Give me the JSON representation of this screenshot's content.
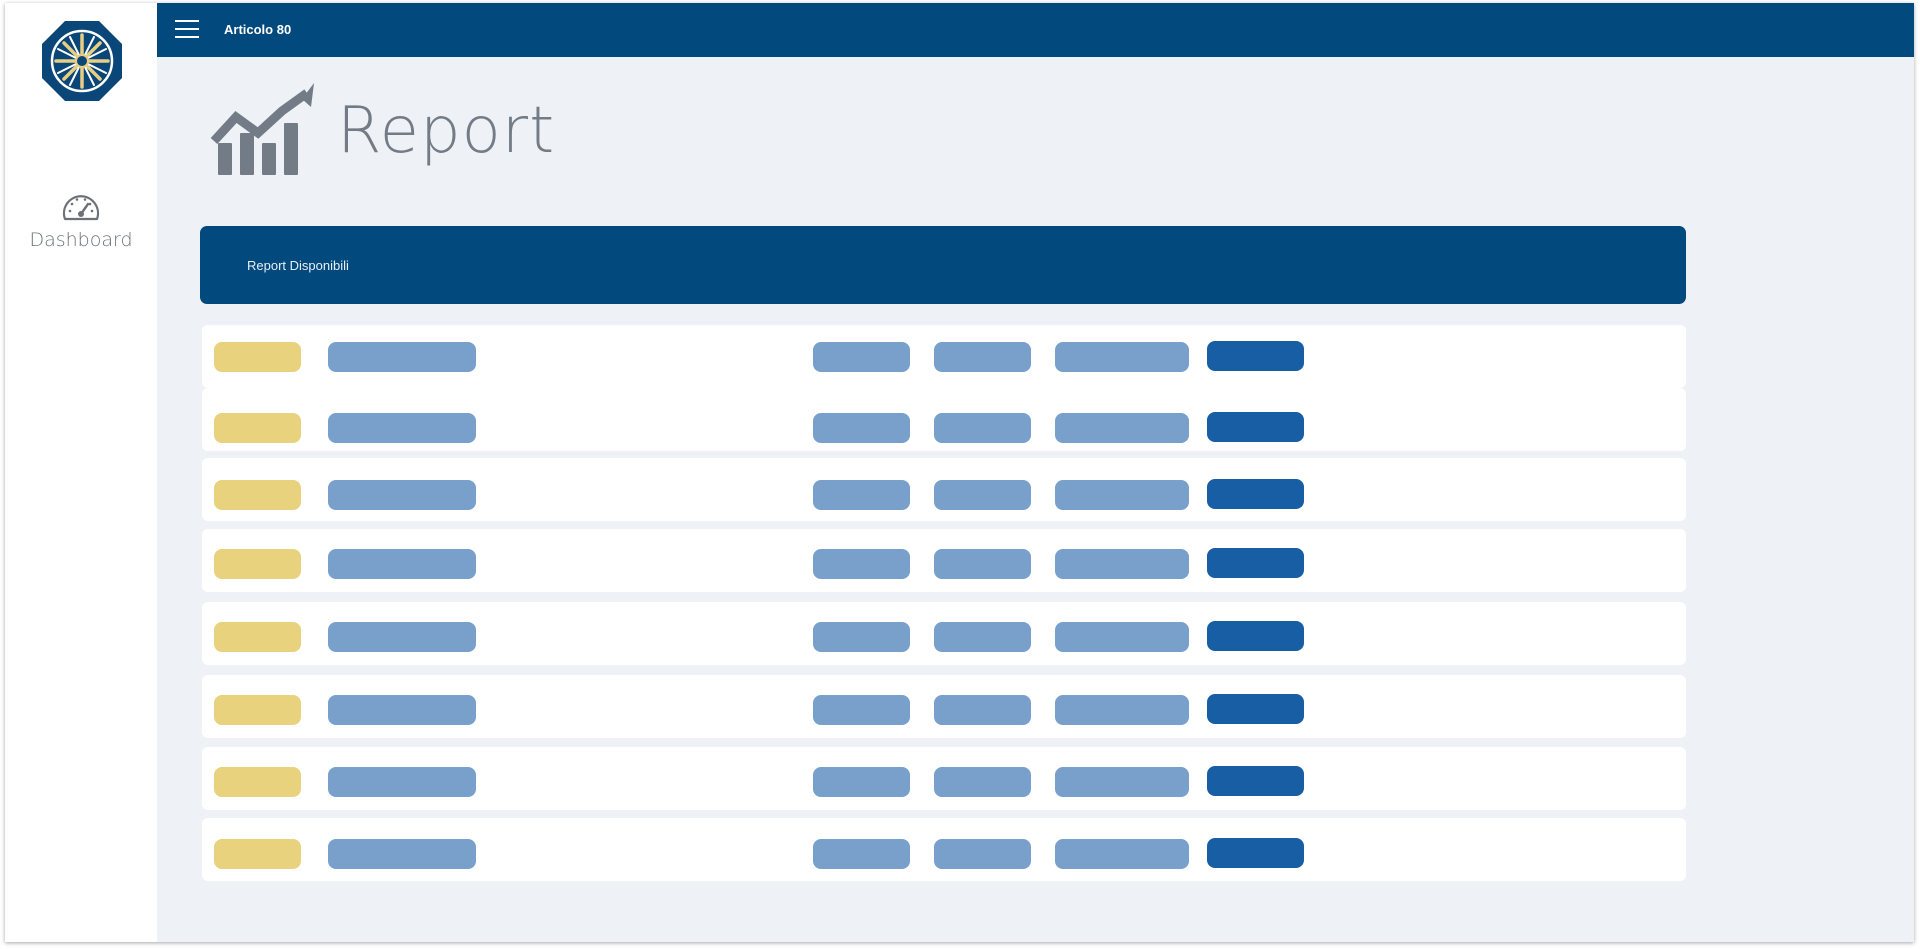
{
  "topbar": {
    "title": "Articolo 80"
  },
  "sidebar": {
    "items": [
      {
        "label": "Dashboard",
        "icon": "speedometer-icon"
      }
    ]
  },
  "page": {
    "title": "Report",
    "icon": "chart-up-arrow-icon"
  },
  "panel": {
    "title": "Report Disponibili"
  },
  "colors": {
    "brand": "#02497d",
    "placeholder_yellow": "#e8d27e",
    "placeholder_light_blue": "#78a0cb",
    "button_blue": "#175ea4",
    "page_background": "#eef1f6"
  },
  "reports": {
    "row_count": 8
  }
}
